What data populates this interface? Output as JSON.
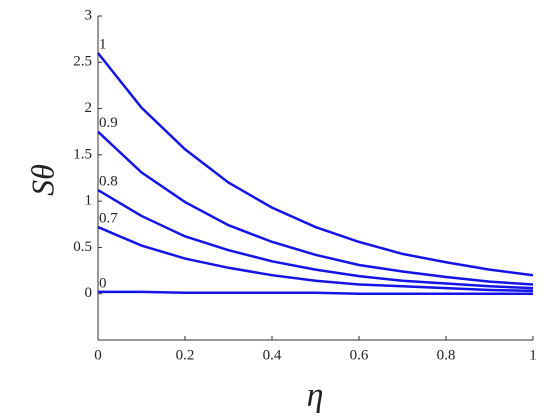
{
  "chart_data": {
    "type": "line",
    "xlabel": "η",
    "ylabel": "Sθ",
    "x": [
      0,
      0.1,
      0.2,
      0.3,
      0.4,
      0.5,
      0.6,
      0.7,
      0.8,
      0.9,
      1
    ],
    "series": [
      {
        "name": "1",
        "color": "#1414e6",
        "values": [
          2.6,
          2.01,
          1.56,
          1.2,
          0.93,
          0.72,
          0.56,
          0.43,
          0.34,
          0.26,
          0.2
        ]
      },
      {
        "name": "0.9",
        "color": "#1414e6",
        "values": [
          1.75,
          1.31,
          0.99,
          0.74,
          0.56,
          0.42,
          0.31,
          0.24,
          0.18,
          0.13,
          0.1
        ]
      },
      {
        "name": "0.8",
        "color": "#1414e6",
        "values": [
          1.12,
          0.84,
          0.62,
          0.47,
          0.35,
          0.26,
          0.19,
          0.14,
          0.11,
          0.08,
          0.06
        ]
      },
      {
        "name": "0.7",
        "color": "#1414e6",
        "values": [
          0.72,
          0.52,
          0.38,
          0.28,
          0.2,
          0.14,
          0.1,
          0.08,
          0.06,
          0.04,
          0.03
        ]
      },
      {
        "name": "0",
        "color": "#1414e6",
        "values": [
          0.02,
          0.02,
          0.01,
          0.01,
          0.01,
          0.01,
          0,
          0,
          0,
          0,
          0
        ]
      }
    ],
    "xlim": [
      0,
      1
    ],
    "xticks": [
      0,
      0.2,
      0.4,
      0.6,
      0.8,
      1
    ],
    "ylim": [
      -0.5,
      3
    ],
    "yticks": [
      0,
      0.5,
      1,
      1.5,
      2,
      2.5,
      3
    ]
  }
}
